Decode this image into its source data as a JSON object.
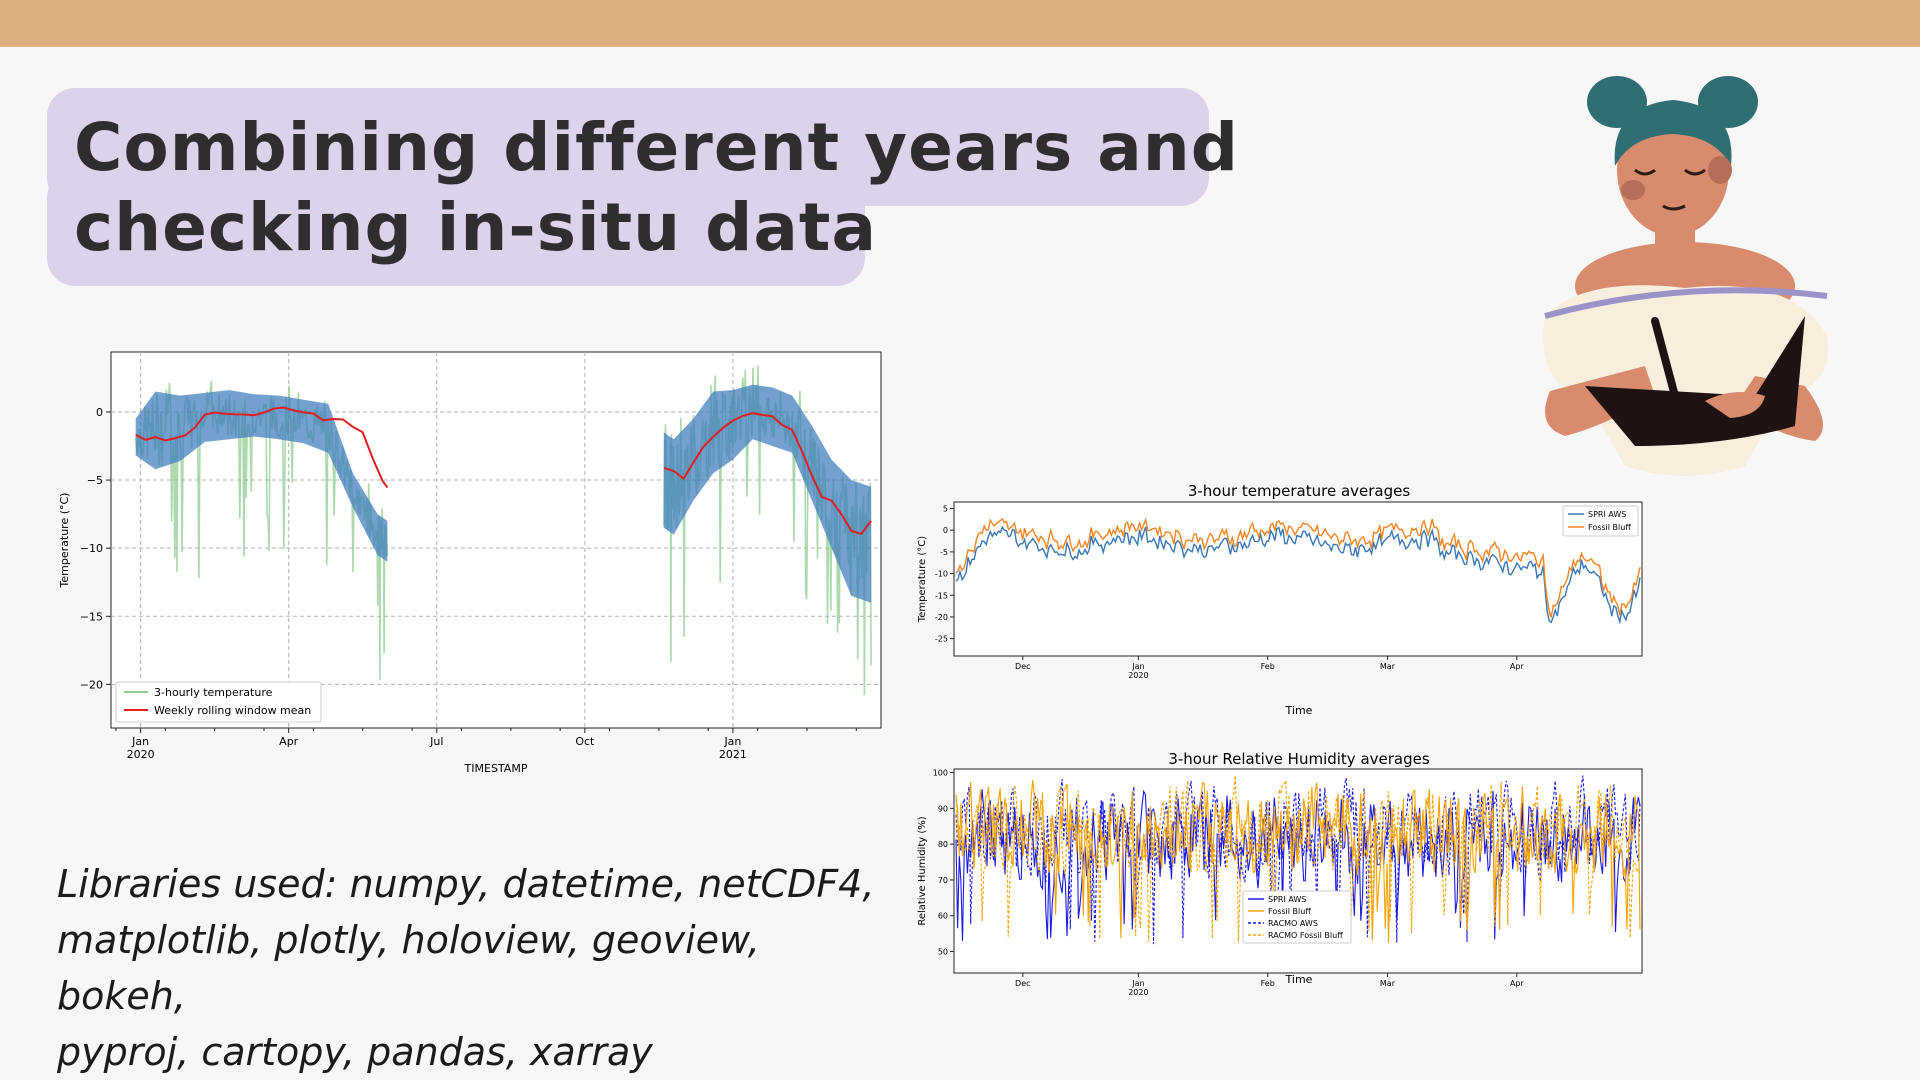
{
  "slide": {
    "title_line1": "Combining different years and",
    "title_line2": "checking in-situ data",
    "libraries_line1": "Libraries used: numpy, datetime, netCDF4,",
    "libraries_line2": "matplotlib, plotly, holoview, geoview, bokeh,",
    "libraries_line3": "pyproj, cartopy, pandas, xarray",
    "colors": {
      "top_bar": "#dcaf7f",
      "title_highlight": "#dcd3ea",
      "background": "#f7f7f7"
    }
  },
  "illustration": {
    "icon": "woman-writing-in-notebook-illustration"
  },
  "chart_data": [
    {
      "type": "line",
      "title": "",
      "xlabel": "TIMESTAMP",
      "ylabel": "Temperature (°C)",
      "ylim": [
        -23.2,
        4.4
      ],
      "xlim": [
        20.4,
        26.3
      ],
      "x_ticks": [
        {
          "x": 21,
          "label": "Jan",
          "sub": "2020"
        },
        {
          "x": 24,
          "label": "Apr",
          "sub": ""
        },
        {
          "x": 27,
          "label": "Jul",
          "sub": ""
        },
        {
          "x": 30,
          "label": "Oct",
          "sub": ""
        },
        {
          "x": 33,
          "label": "Jan",
          "sub": "2021"
        }
      ],
      "y_ticks": [
        0,
        -5,
        -10,
        -15,
        -20
      ],
      "grid": true,
      "legend_position": "bottom-left",
      "series": [
        {
          "name": "3-hourly temperature",
          "color": "#8fcc92"
        },
        {
          "name": "",
          "color": "#3d7bbd",
          "segments": [
            {
              "x": [
                20.9,
                21.3,
                21.8,
                22.3,
                22.8,
                23.3,
                23.8,
                24.3,
                24.8,
                25.3,
                25.8,
                26.0
              ],
              "upper": [
                -0.5,
                1.5,
                1.2,
                1.4,
                1.6,
                1.3,
                1.2,
                0.9,
                0.6,
                -4.5,
                -7.5,
                -8.0
              ],
              "lower": [
                -3.2,
                -4.2,
                -3.6,
                -2.2,
                -2.0,
                -1.8,
                -2.0,
                -2.3,
                -3.0,
                -7.0,
                -10.5,
                -11.0
              ]
            },
            {
              "x": [
                31.6,
                31.8,
                32.2,
                32.6,
                33.0,
                33.4,
                33.8,
                34.2,
                34.6,
                35.0,
                35.4,
                35.8
              ],
              "upper": [
                -1.5,
                -2.0,
                -0.5,
                1.5,
                1.6,
                2.0,
                1.8,
                1.2,
                -1.0,
                -3.5,
                -5.0,
                -5.5
              ],
              "lower": [
                -8.5,
                -9.0,
                -6.5,
                -4.5,
                -3.5,
                -2.0,
                -2.5,
                -3.0,
                -6.5,
                -10.0,
                -13.5,
                -14.0
              ]
            }
          ]
        },
        {
          "name": "Weekly rolling window mean",
          "color": "#e01e1e",
          "segments": [
            {
              "x": [
                20.9,
                21.1,
                21.3,
                21.5,
                21.7,
                21.9,
                22.1,
                22.3,
                22.5,
                22.7,
                22.9,
                23.1,
                23.3,
                23.5,
                23.7,
                23.9,
                24.1,
                24.3,
                24.5,
                24.7,
                24.9,
                25.1,
                25.3,
                25.5,
                25.7,
                25.9,
                26.0
              ],
              "y": [
                -1.5,
                -1.8,
                -2.0,
                -2.2,
                -2.0,
                -1.6,
                -1.0,
                -0.3,
                0.1,
                0.1,
                -0.2,
                0.0,
                -0.3,
                -0.1,
                0.3,
                0.4,
                0.2,
                0.0,
                -0.2,
                -0.4,
                -0.6,
                -0.8,
                -1.0,
                -1.5,
                -3.5,
                -5.0,
                -5.5
              ]
            },
            {
              "x": [
                31.6,
                31.8,
                32.0,
                32.2,
                32.4,
                32.6,
                32.8,
                33.0,
                33.2,
                33.4,
                33.6,
                33.8,
                34.0,
                34.2,
                34.4,
                34.6,
                34.8,
                35.0,
                35.2,
                35.4,
                35.6,
                35.8
              ],
              "y": [
                -4.0,
                -4.5,
                -5.0,
                -3.5,
                -2.8,
                -2.0,
                -1.2,
                -0.5,
                -0.2,
                0.1,
                0.0,
                -0.3,
                -0.8,
                -1.5,
                -3.0,
                -4.5,
                -6.0,
                -6.5,
                -7.5,
                -8.5,
                -8.8,
                -8.0
              ]
            }
          ]
        }
      ]
    },
    {
      "type": "line",
      "title": "3-hour temperature averages",
      "xlabel": "Time",
      "ylabel": "Temperature (°C)",
      "ylim": [
        -29,
        6.5
      ],
      "y_ticks": [
        5,
        0,
        -5,
        -10,
        -15,
        -20,
        -25
      ],
      "x_ticks": [
        {
          "label": "Dec",
          "sub": ""
        },
        {
          "label": "Jan",
          "sub": "2020"
        },
        {
          "label": "Feb",
          "sub": ""
        },
        {
          "label": "Mar",
          "sub": ""
        },
        {
          "label": "Apr",
          "sub": ""
        }
      ],
      "legend_position": "top-right",
      "series": [
        {
          "name": "SPRI AWS",
          "color": "#3a78b5",
          "style": "solid"
        },
        {
          "name": "Fossil Bluff",
          "color": "#f5841f",
          "style": "solid"
        }
      ]
    },
    {
      "type": "line",
      "title": "3-hour Relative Humidity averages",
      "xlabel": "Time",
      "ylabel": "Relative Humidity (%)",
      "ylim": [
        44,
        101
      ],
      "y_ticks": [
        100,
        90,
        80,
        70,
        60,
        50
      ],
      "x_ticks": [
        {
          "label": "Dec",
          "sub": ""
        },
        {
          "label": "Jan",
          "sub": "2020"
        },
        {
          "label": "Feb",
          "sub": ""
        },
        {
          "label": "Mar",
          "sub": ""
        },
        {
          "label": "Apr",
          "sub": ""
        }
      ],
      "legend_position": "bottom-center",
      "series": [
        {
          "name": "SPRI AWS",
          "color": "#1a1ae6",
          "style": "solid"
        },
        {
          "name": "Fossil Bluff",
          "color": "#f5a300",
          "style": "solid"
        },
        {
          "name": "RACMO AWS",
          "color": "#1a1ae6",
          "style": "dashed"
        },
        {
          "name": "RACMO Fossil Bluff",
          "color": "#f5a300",
          "style": "dashed"
        }
      ]
    }
  ]
}
